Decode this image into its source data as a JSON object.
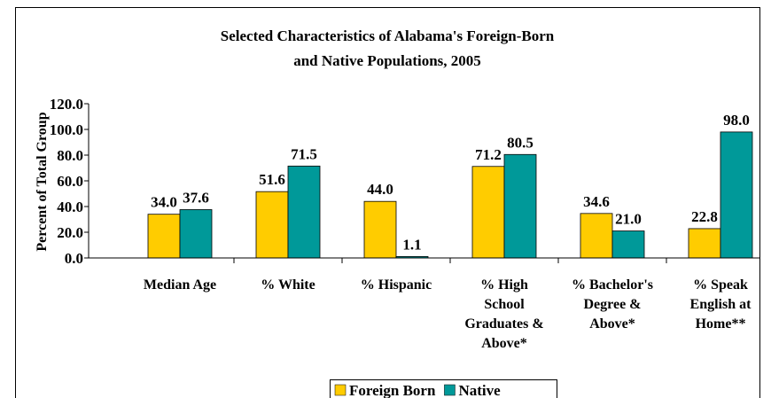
{
  "chart_data": {
    "type": "bar",
    "title": [
      "Selected Characteristics of Alabama's Foreign-Born",
      "and Native Populations, 2005"
    ],
    "y_label": "Percent of Total Group",
    "categories": [
      "Median Age",
      "% White",
      "% Hispanic",
      "% High School Graduates & Above*",
      "% Bachelor's Degree & Above*",
      "% Speak English at Home**"
    ],
    "series": [
      {
        "name": "Foreign Born",
        "color": "#ffcc00",
        "values": [
          34.0,
          51.6,
          44.0,
          71.2,
          34.6,
          22.8
        ],
        "value_labels": [
          "34.0",
          "51.6",
          "44.0",
          "71.2",
          "34.6",
          "22.8"
        ]
      },
      {
        "name": "Native",
        "color": "#009999",
        "values": [
          37.6,
          71.5,
          1.1,
          80.5,
          21.0,
          98.0
        ],
        "value_labels": [
          "37.6",
          "71.5",
          "1.1",
          "80.5",
          "21.0",
          "98.0"
        ]
      }
    ],
    "ylim": [
      0,
      120
    ],
    "yticks": [
      {
        "value": 0,
        "label": "0.0"
      },
      {
        "value": 20,
        "label": "20.0"
      },
      {
        "value": 40,
        "label": "40.0"
      },
      {
        "value": 60,
        "label": "60.0"
      },
      {
        "value": 80,
        "label": "80.0"
      },
      {
        "value": 100,
        "label": "100.0"
      },
      {
        "value": 120,
        "label": "120.0"
      }
    ],
    "legend": "bottom"
  }
}
